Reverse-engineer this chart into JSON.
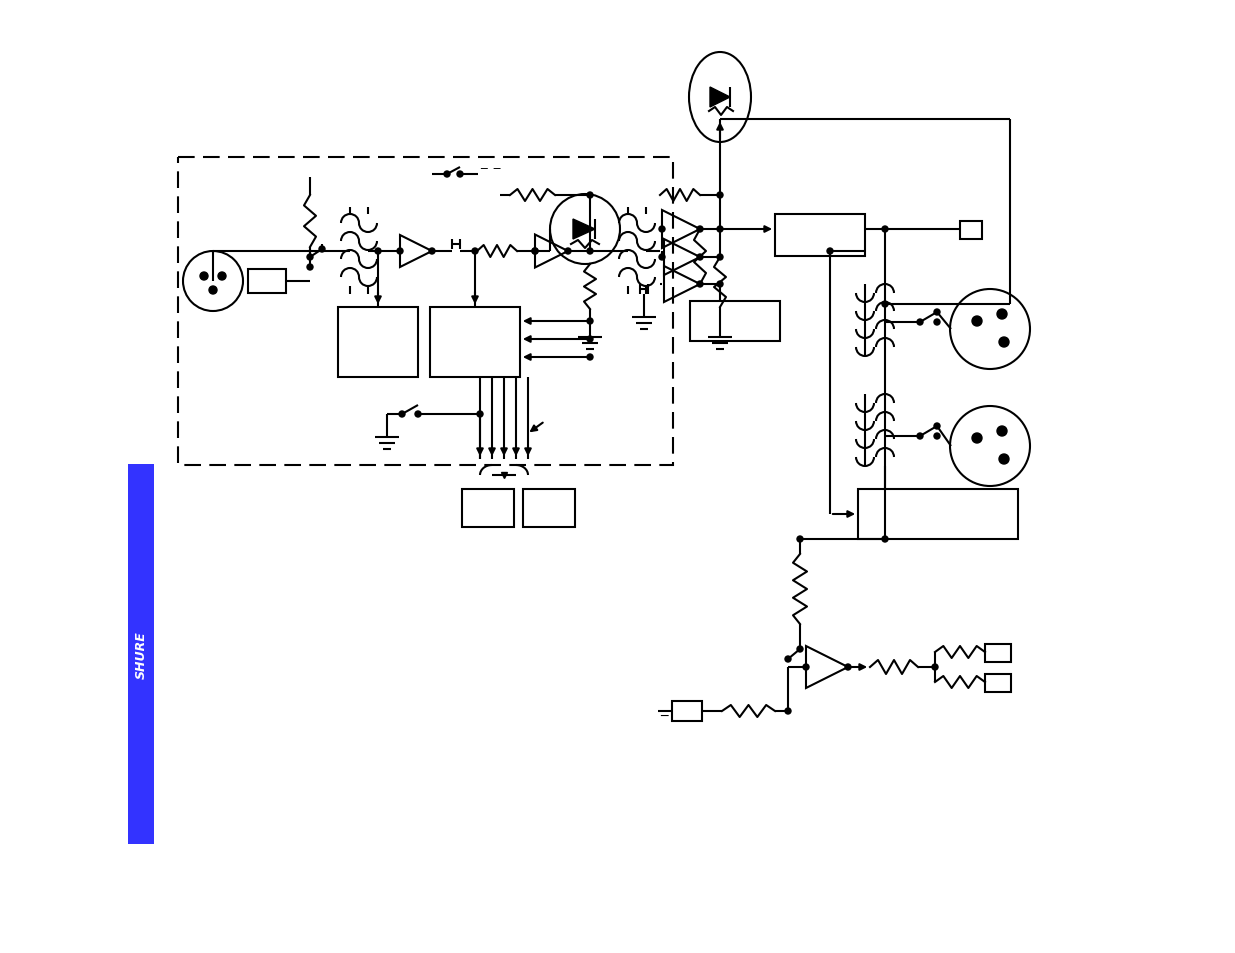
{
  "bg": "#ffffff",
  "line_color": "#000000",
  "line_width": 1.5,
  "shure_blue": "#3333ff",
  "shure_text": "SHURE"
}
